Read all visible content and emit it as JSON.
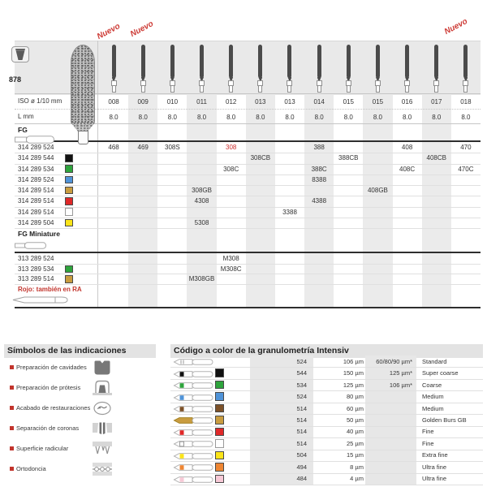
{
  "catalog": {
    "shape_number": "878",
    "new_badge": "Nuevo",
    "new_badge_columns": [
      0,
      1,
      12
    ],
    "iso_label": "ISO ø 1/10 mm",
    "length_label": "L mm",
    "columns": [
      "008",
      "009",
      "010",
      "011",
      "012",
      "013",
      "013",
      "014",
      "015",
      "015",
      "016",
      "017",
      "018"
    ],
    "lengths": [
      "8.0",
      "8.0",
      "8.0",
      "8.0",
      "8.0",
      "8.0",
      "8.0",
      "8.0",
      "8.0",
      "8.0",
      "8.0",
      "8.0",
      "8.0"
    ],
    "shaded_columns": [
      1,
      3,
      5,
      7,
      9,
      11
    ],
    "sections": [
      {
        "label": "FG",
        "rows": [
          {
            "code": "314 289 524",
            "color": null,
            "cells": [
              {
                "col": 0,
                "value": "468"
              },
              {
                "col": 1,
                "value": "469"
              },
              {
                "col": 2,
                "value": "308S"
              },
              {
                "col": 4,
                "value": "308",
                "red": true
              },
              {
                "col": 7,
                "value": "388"
              },
              {
                "col": 10,
                "value": "408"
              },
              {
                "col": 12,
                "value": "470"
              }
            ]
          },
          {
            "code": "314 289 544",
            "color": "black",
            "cells": [
              {
                "col": 5,
                "value": "308CB"
              },
              {
                "col": 8,
                "value": "388CB"
              },
              {
                "col": 11,
                "value": "408CB"
              }
            ]
          },
          {
            "code": "314 289 534",
            "color": "green",
            "cells": [
              {
                "col": 4,
                "value": "308C"
              },
              {
                "col": 7,
                "value": "388C"
              },
              {
                "col": 10,
                "value": "408C"
              },
              {
                "col": 12,
                "value": "470C"
              }
            ]
          },
          {
            "code": "314 289 524",
            "color": "blue",
            "cells": [
              {
                "col": 7,
                "value": "8388"
              }
            ]
          },
          {
            "code": "314 289 514",
            "color": "gold",
            "cells": [
              {
                "col": 3,
                "value": "308GB"
              },
              {
                "col": 9,
                "value": "408GB"
              }
            ]
          },
          {
            "code": "314 289 514",
            "color": "red",
            "cells": [
              {
                "col": 3,
                "value": "4308"
              },
              {
                "col": 7,
                "value": "4388"
              }
            ]
          },
          {
            "code": "314 289 514",
            "color": "white",
            "cells": [
              {
                "col": 6,
                "value": "3388"
              }
            ]
          },
          {
            "code": "314 289 504",
            "color": "yellow",
            "cells": [
              {
                "col": 3,
                "value": "5308"
              }
            ]
          }
        ]
      },
      {
        "label": "FG Miniature",
        "rows": [
          {
            "code": "313 289 524",
            "color": null,
            "cells": [
              {
                "col": 4,
                "value": "M308"
              }
            ]
          },
          {
            "code": "313 289 534",
            "color": "green",
            "cells": [
              {
                "col": 4,
                "value": "M308C"
              }
            ]
          },
          {
            "code": "313 289 514",
            "color": "gold",
            "cells": [
              {
                "col": 3,
                "value": "M308GB"
              }
            ]
          }
        ]
      }
    ],
    "footnote": "Rojo: también en RA"
  },
  "colors": {
    "black": "#111111",
    "green": "#2ea43c",
    "blue": "#4f93d8",
    "gold": "#c99c3f",
    "red": "#e02828",
    "white": "#ffffff",
    "yellow": "#fbe418",
    "brown": "#7d5128",
    "orange": "#ee8633",
    "pink": "#f7c9d6",
    "accent_red": "#cd3a35"
  },
  "symbols_panel": {
    "title": "Símbolos de las indicaciones",
    "items": [
      {
        "label": "Preparación de cavidades",
        "icon": "cavity-preparation-icon"
      },
      {
        "label": "Preparación de prótesis",
        "icon": "prosthesis-preparation-icon"
      },
      {
        "label": "Acabado de restauraciones",
        "icon": "restoration-finishing-icon"
      },
      {
        "label": "Separación de coronas",
        "icon": "crown-separation-icon"
      },
      {
        "label": "Superficie radicular",
        "icon": "root-surface-icon"
      },
      {
        "label": "Ortodoncia",
        "icon": "orthodontics-icon"
      }
    ]
  },
  "grit_panel": {
    "title": "Código a color de la granulometría Intensiv",
    "rows": [
      {
        "color": null,
        "code": "524",
        "grain": "106 µm",
        "extra": "60/80/90 µm*",
        "name": "Standard"
      },
      {
        "color": "black",
        "code": "544",
        "grain": "150 µm",
        "extra": "125 µm*",
        "name": "Super coarse"
      },
      {
        "color": "green",
        "code": "534",
        "grain": "125 µm",
        "extra": "106 µm*",
        "name": "Coarse"
      },
      {
        "color": "blue",
        "code": "524",
        "grain": "80 µm",
        "extra": "",
        "name": "Medium"
      },
      {
        "color": "brown",
        "code": "514",
        "grain": "60 µm",
        "extra": "",
        "name": "Medium"
      },
      {
        "color": "gold",
        "code": "514",
        "grain": "50 µm",
        "extra": "",
        "name": "Golden Burs GB",
        "gold_head": true
      },
      {
        "color": "red",
        "code": "514",
        "grain": "40 µm",
        "extra": "",
        "name": "Fine"
      },
      {
        "color": "white",
        "code": "514",
        "grain": "25 µm",
        "extra": "",
        "name": "Fine"
      },
      {
        "color": "yellow",
        "code": "504",
        "grain": "15 µm",
        "extra": "",
        "name": "Extra fine"
      },
      {
        "color": "orange",
        "code": "494",
        "grain": "8 µm",
        "extra": "",
        "name": "Ultra fine"
      },
      {
        "color": "pink",
        "code": "484",
        "grain": "4 µm",
        "extra": "",
        "name": "Ultra fine"
      }
    ]
  }
}
